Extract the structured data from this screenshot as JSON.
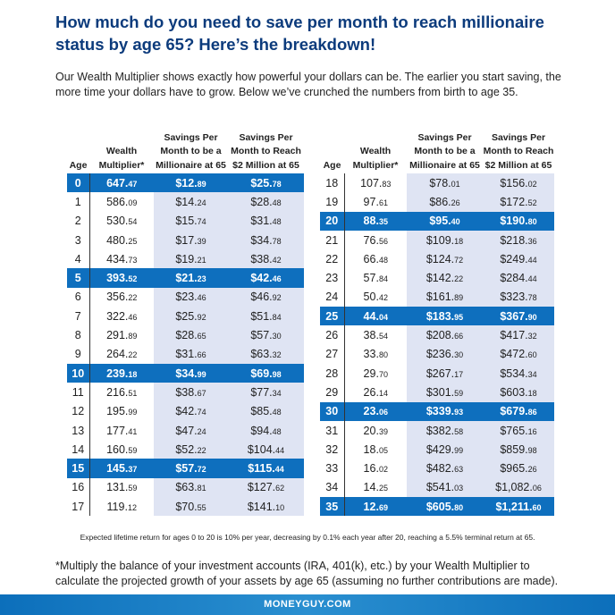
{
  "header": {
    "title": "How much do you need to save per month to reach millionaire status by age 65? Here’s the breakdown!",
    "intro": "Our Wealth Multiplier shows exactly how powerful your dollars can be. The earlier you start saving, the more time your dollars have to grow. Below we’ve crunched the numbers from birth to age 35."
  },
  "tables": [
    {
      "columns": [
        "Age",
        "Wealth Multiplier*",
        "Savings Per Month to be a Millionaire at 65",
        "Savings Per Month to Reach $2 Million at 65"
      ],
      "rows": [
        [
          "0",
          "647.47",
          "$12.89",
          "$25.78"
        ],
        [
          "1",
          "586.09",
          "$14.24",
          "$28.48"
        ],
        [
          "2",
          "530.54",
          "$15.74",
          "$31.48"
        ],
        [
          "3",
          "480.25",
          "$17.39",
          "$34.78"
        ],
        [
          "4",
          "434.73",
          "$19.21",
          "$38.42"
        ],
        [
          "5",
          "393.52",
          "$21.23",
          "$42.46"
        ],
        [
          "6",
          "356.22",
          "$23.46",
          "$46.92"
        ],
        [
          "7",
          "322.46",
          "$25.92",
          "$51.84"
        ],
        [
          "8",
          "291.89",
          "$28.65",
          "$57.30"
        ],
        [
          "9",
          "264.22",
          "$31.66",
          "$63.32"
        ],
        [
          "10",
          "239.18",
          "$34.99",
          "$69.98"
        ],
        [
          "11",
          "216.51",
          "$38.67",
          "$77.34"
        ],
        [
          "12",
          "195.99",
          "$42.74",
          "$85.48"
        ],
        [
          "13",
          "177.41",
          "$47.24",
          "$94.48"
        ],
        [
          "14",
          "160.59",
          "$52.22",
          "$104.44"
        ],
        [
          "15",
          "145.37",
          "$57.72",
          "$115.44"
        ],
        [
          "16",
          "131.59",
          "$63.81",
          "$127.62"
        ],
        [
          "17",
          "119.12",
          "$70.55",
          "$141.10"
        ]
      ]
    },
    {
      "columns": [
        "Age",
        "Wealth Multiplier*",
        "Savings Per Month to be a Millionaire at 65",
        "Savings Per Month to Reach $2 Million at 65"
      ],
      "rows": [
        [
          "18",
          "107.83",
          "$78.01",
          "$156.02"
        ],
        [
          "19",
          "97.61",
          "$86.26",
          "$172.52"
        ],
        [
          "20",
          "88.35",
          "$95.40",
          "$190.80"
        ],
        [
          "21",
          "76.56",
          "$109.18",
          "$218.36"
        ],
        [
          "22",
          "66.48",
          "$124.72",
          "$249.44"
        ],
        [
          "23",
          "57.84",
          "$142.22",
          "$284.44"
        ],
        [
          "24",
          "50.42",
          "$161.89",
          "$323.78"
        ],
        [
          "25",
          "44.04",
          "$183.95",
          "$367.90"
        ],
        [
          "26",
          "38.54",
          "$208.66",
          "$417.32"
        ],
        [
          "27",
          "33.80",
          "$236.30",
          "$472.60"
        ],
        [
          "28",
          "29.70",
          "$267.17",
          "$534.34"
        ],
        [
          "29",
          "26.14",
          "$301.59",
          "$603.18"
        ],
        [
          "30",
          "23.06",
          "$339.93",
          "$679.86"
        ],
        [
          "31",
          "20.39",
          "$382.58",
          "$765.16"
        ],
        [
          "32",
          "18.05",
          "$429.99",
          "$859.98"
        ],
        [
          "33",
          "16.02",
          "$482.63",
          "$965.26"
        ],
        [
          "34",
          "14.25",
          "$541.03",
          "$1,082.06"
        ],
        [
          "35",
          "12.69",
          "$605.80",
          "$1,211.60"
        ]
      ]
    }
  ],
  "footnote": "Expected lifetime return for ages 0 to 20 is 10% per year, decreasing by 0.1% each year after 20, reaching a 5.5% terminal return at 65.",
  "note": "*Multiply the balance of your investment accounts (IRA, 401(k), etc.) by your Wealth Multiplier to calculate the projected growth of your assets by age 65 (assuming no further contributions are made).",
  "footer": "MONEYGUY.COM"
}
